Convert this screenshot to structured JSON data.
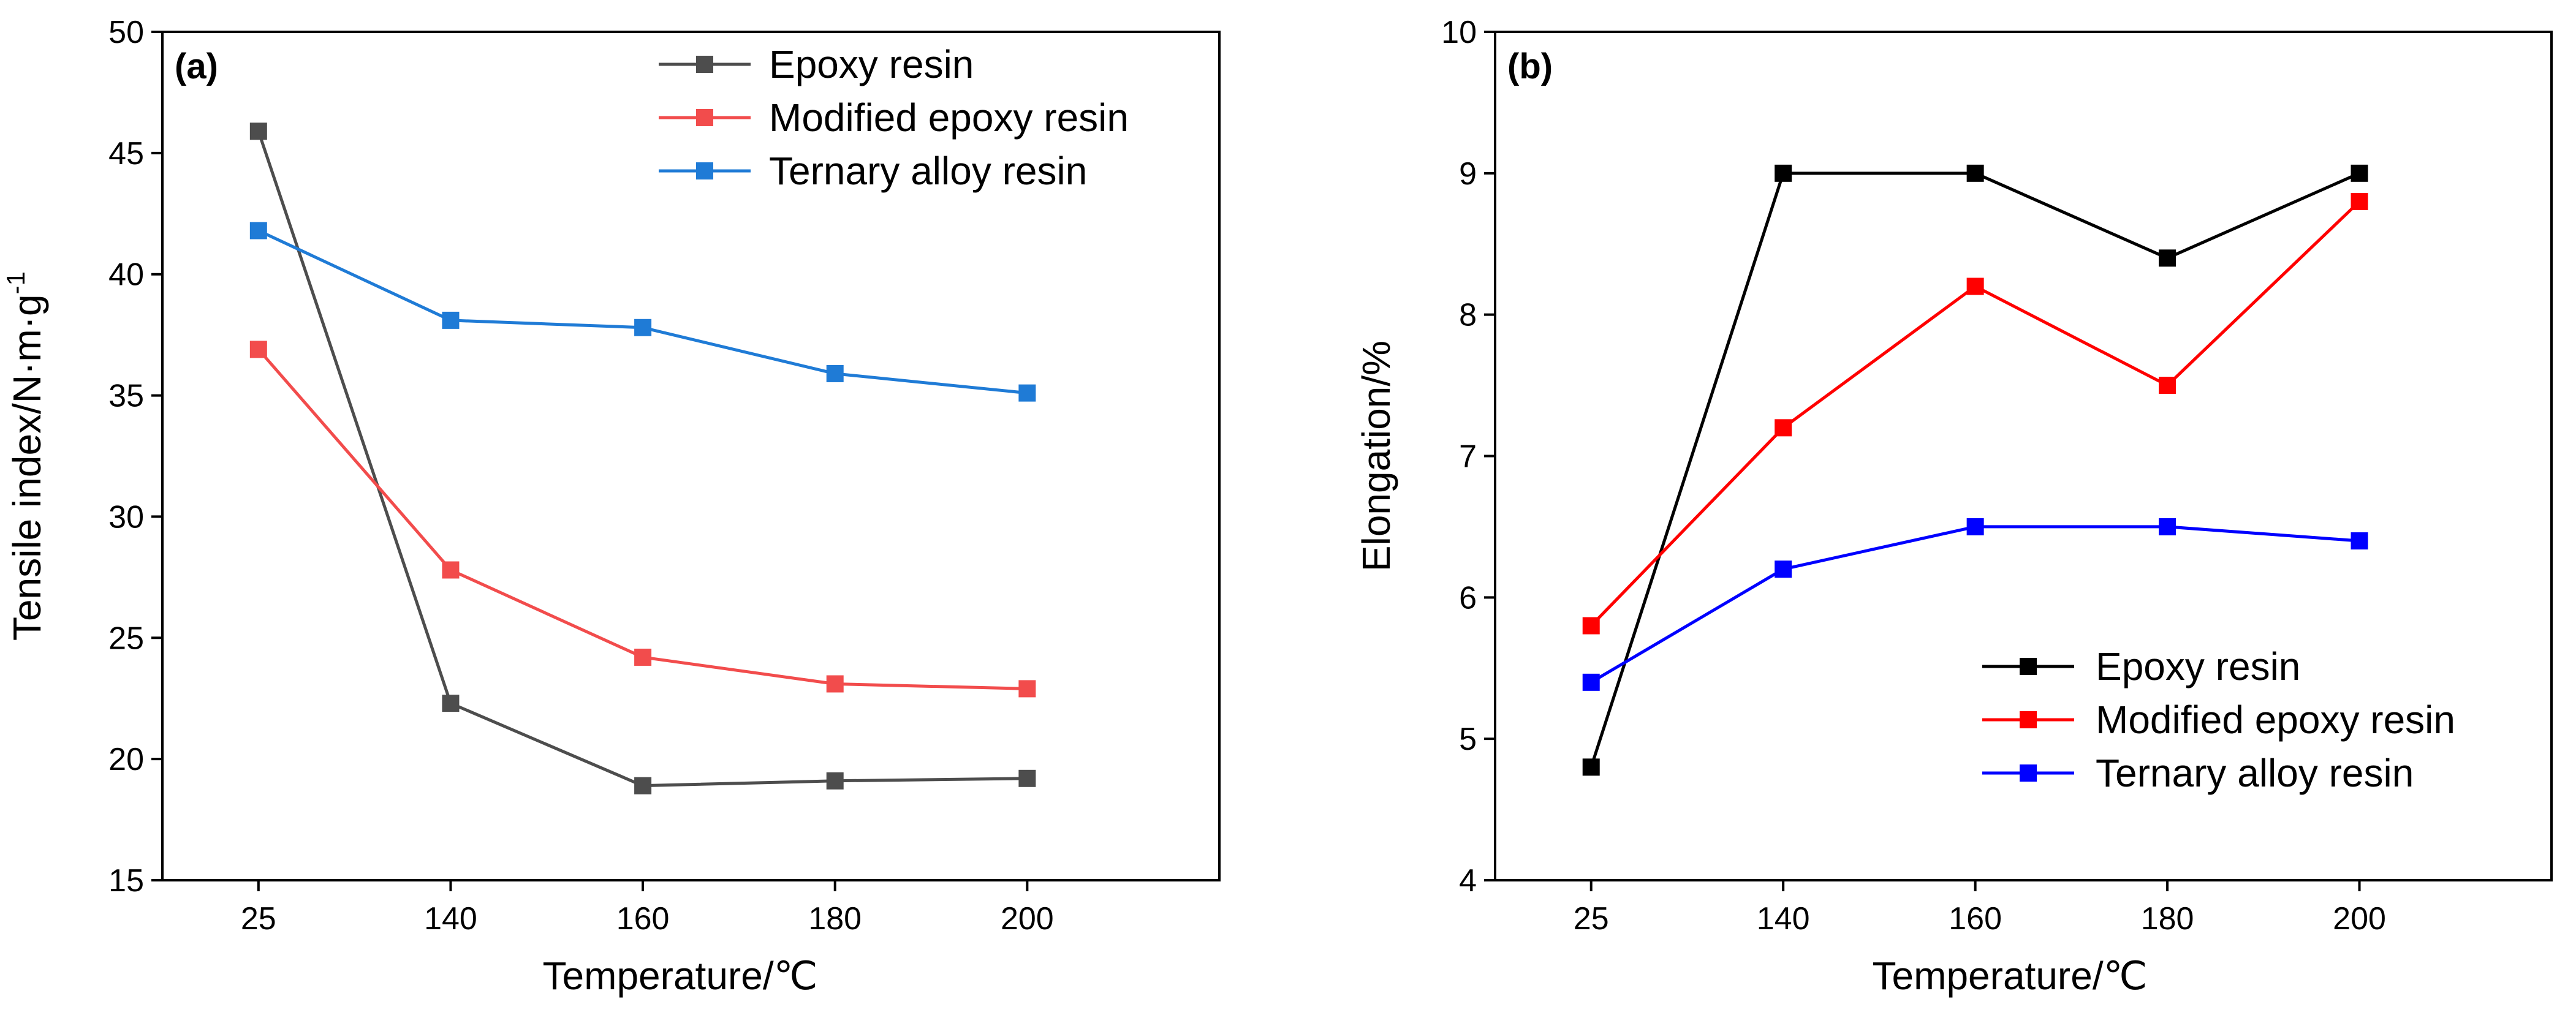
{
  "chart_data": [
    {
      "type": "line",
      "panel_label": "(a)",
      "title": "",
      "xlabel": "Temperature/℃",
      "ylabel": "Tensile index/N·m·g",
      "ylabel_superscript": "-1",
      "categories": [
        "25",
        "140",
        "160",
        "180",
        "200"
      ],
      "ylim": [
        15,
        50
      ],
      "yticks": [
        15,
        20,
        25,
        30,
        35,
        40,
        45,
        50
      ],
      "grid": false,
      "legend_position": "top-right",
      "series": [
        {
          "name": "Epoxy resin",
          "color": "#4d4d4d",
          "values": [
            45.9,
            22.3,
            18.9,
            19.1,
            19.2
          ]
        },
        {
          "name": "Modified epoxy resin",
          "color": "#f24c4c",
          "values": [
            36.9,
            27.8,
            24.2,
            23.1,
            22.9
          ]
        },
        {
          "name": "Ternary alloy resin",
          "color": "#1f7bd6",
          "values": [
            41.8,
            38.1,
            37.8,
            35.9,
            35.1
          ]
        }
      ]
    },
    {
      "type": "line",
      "panel_label": "(b)",
      "title": "",
      "xlabel": "Temperature/℃",
      "ylabel": "Elongation/%",
      "categories": [
        "25",
        "140",
        "160",
        "180",
        "200"
      ],
      "ylim": [
        4,
        10
      ],
      "yticks": [
        4,
        5,
        6,
        7,
        8,
        9,
        10
      ],
      "grid": false,
      "legend_position": "bottom-right",
      "series": [
        {
          "name": "Epoxy resin",
          "color": "#000000",
          "values": [
            4.8,
            9.0,
            9.0,
            8.4,
            9.0
          ]
        },
        {
          "name": "Modified epoxy resin",
          "color": "#ff0000",
          "values": [
            5.8,
            7.2,
            8.2,
            7.5,
            8.8
          ]
        },
        {
          "name": "Ternary alloy resin",
          "color": "#0000ff",
          "values": [
            5.4,
            6.2,
            6.5,
            6.5,
            6.4
          ]
        }
      ]
    }
  ]
}
